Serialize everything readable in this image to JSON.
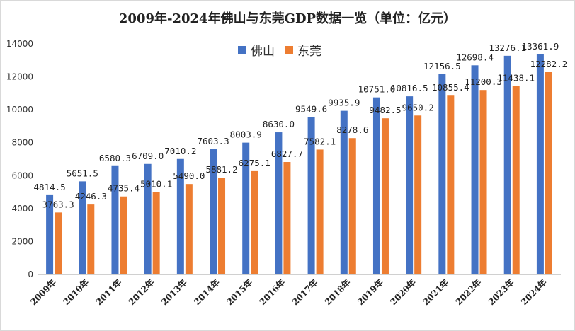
{
  "chart_data": {
    "type": "bar",
    "title": "2009年-2024年佛山与东莞GDP数据一览（单位：亿元）",
    "categories": [
      "2009年",
      "2010年",
      "2011年",
      "2012年",
      "2013年",
      "2014年",
      "2015年",
      "2016年",
      "2017年",
      "2018年",
      "2019年",
      "2020年",
      "2021年",
      "2022年",
      "2023年",
      "2024年"
    ],
    "series": [
      {
        "name": "佛山",
        "color": "#4472C4",
        "values": [
          4814.5,
          5651.5,
          6580.3,
          6709.0,
          7010.2,
          7603.3,
          8003.9,
          8630.0,
          9549.6,
          9935.9,
          10751.0,
          10816.5,
          12156.5,
          12698.4,
          13276.1,
          13361.9
        ],
        "labels": [
          "4814.5",
          "5651.5",
          "6580.3",
          "6709.0",
          "7010.2",
          "7603.3",
          "8003.9",
          "8630.0",
          "9549.6",
          "9935.9",
          "10751.0",
          "10816.5",
          "12156.5",
          "12698.4",
          "13276.1",
          "13361.9"
        ]
      },
      {
        "name": "东莞",
        "color": "#ED7D31",
        "values": [
          3763.3,
          4246.3,
          4735.4,
          5010.1,
          5490.0,
          5881.2,
          6275.1,
          6827.7,
          7582.1,
          8278.6,
          9482.5,
          9650.2,
          10855.4,
          11200.3,
          11438.1,
          12282.2
        ],
        "labels": [
          "3763.3",
          "4246.3",
          "4735.4",
          "5010.1",
          "5490.0",
          "5881.2",
          "6275.1",
          "6827.7",
          "7582.1",
          "8278.6",
          "9482.5",
          "9650.2",
          "10855.4",
          "11200.3",
          "11438.1",
          "12282.2"
        ]
      }
    ],
    "yticks": [
      0,
      2000,
      4000,
      6000,
      8000,
      10000,
      12000,
      14000
    ],
    "ylim": [
      0,
      14000
    ],
    "grid": false,
    "legend": "top-center"
  }
}
